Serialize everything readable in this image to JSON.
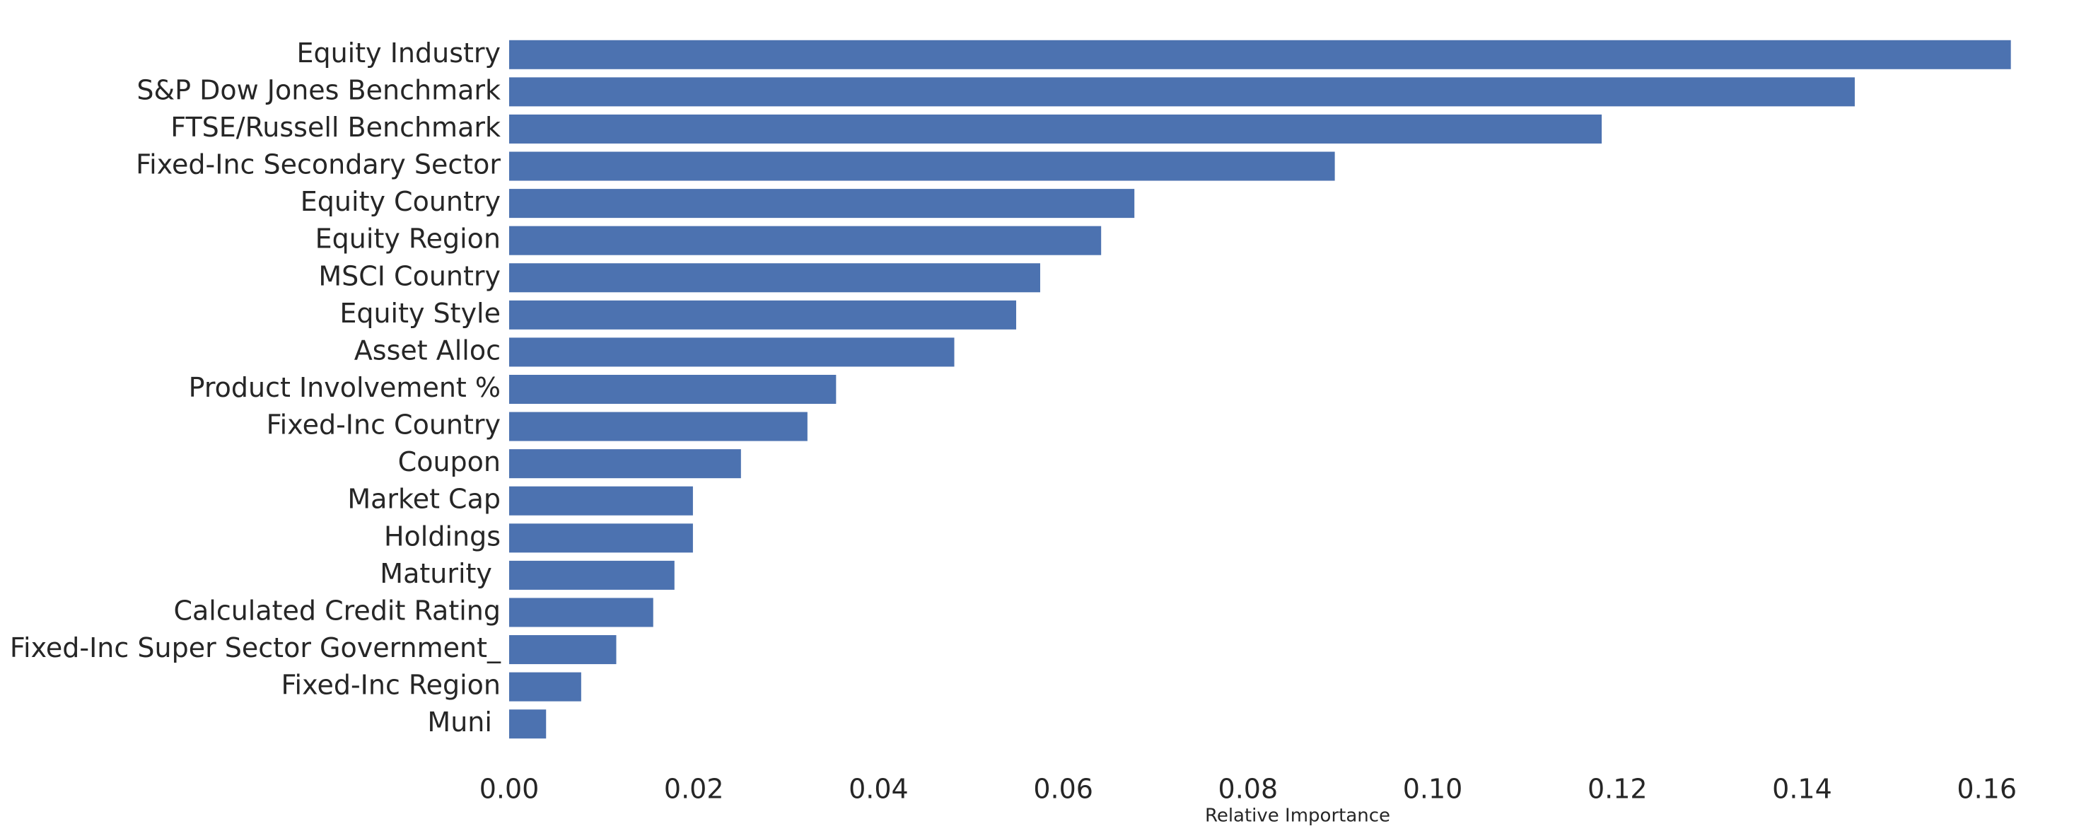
{
  "chart_data": {
    "type": "barh",
    "xlabel": "Relative Importance",
    "categories": [
      "Equity Industry",
      "S&P Dow Jones Benchmark",
      "FTSE/Russell Benchmark",
      "Fixed-Inc Secondary Sector",
      "Equity Country",
      "Equity Region",
      "MSCI Country",
      "Equity Style",
      "Asset Alloc",
      "Product Involvement %",
      "Fixed-Inc Country",
      "Coupon",
      "Market Cap",
      "Holdings",
      "Maturity ",
      "Calculated Credit Rating",
      "Fixed-Inc Super Sector Government_",
      "Fixed-Inc Region",
      "Muni "
    ],
    "values": [
      0.1626,
      0.1457,
      0.1183,
      0.0894,
      0.0677,
      0.0641,
      0.0575,
      0.0549,
      0.0482,
      0.0354,
      0.0323,
      0.0251,
      0.0199,
      0.0199,
      0.0179,
      0.0156,
      0.0116,
      0.0078,
      0.004
    ],
    "color": "#4c72b0",
    "xlim": [
      0,
      0.165
    ],
    "xticks": [
      {
        "value": 0,
        "label": "0.00"
      },
      {
        "value": 0.02,
        "label": "0.02"
      },
      {
        "value": 0.04,
        "label": "0.04"
      },
      {
        "value": 0.06,
        "label": "0.06"
      },
      {
        "value": 0.08,
        "label": "0.08"
      },
      {
        "value": 0.1,
        "label": "0.10"
      },
      {
        "value": 0.12,
        "label": "0.12"
      },
      {
        "value": 0.14,
        "label": "0.14"
      },
      {
        "value": 0.16,
        "label": "0.16"
      }
    ],
    "grid": false
  }
}
